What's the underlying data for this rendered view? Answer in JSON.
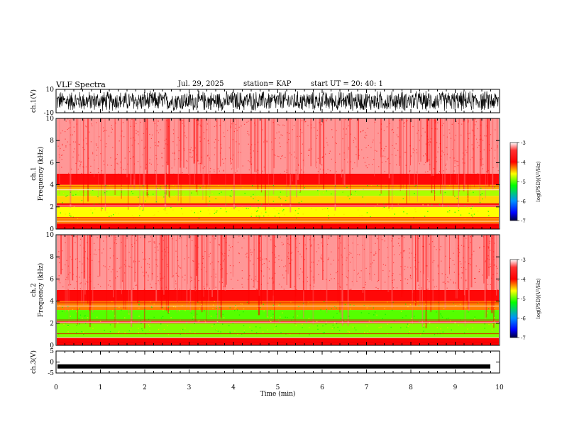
{
  "header": {
    "title": "VLF Spectra",
    "date": "Jul. 29, 2025",
    "station": "station= KAP",
    "start": "start UT = 20: 40: 1"
  },
  "chart_data": [
    {
      "type": "line",
      "title": "VLF Spectra",
      "ylabel": "ch.1(V)",
      "ylim": [
        -10,
        10
      ],
      "yticks": [
        "10",
        "-10"
      ],
      "xlim": [
        0,
        10
      ],
      "description_series": "ch.1 waveform, dense noise spanning about -8 to 8 V"
    },
    {
      "type": "heatmap",
      "ylabel_top": "ch.1",
      "ylabel": "Frequency (kHz)",
      "ylim": [
        0,
        10
      ],
      "yticks": [
        "0",
        "2",
        "4",
        "6",
        "8",
        "10"
      ],
      "xlim": [
        0,
        10
      ],
      "colorbar": {
        "label": "log(PSD)(V²/Hz)",
        "range": [
          -7,
          -3
        ],
        "ticks": [
          "-3",
          "-4",
          "-5",
          "-6",
          "-7"
        ]
      },
      "bands": [
        {
          "from": 0.0,
          "to": 0.5,
          "level": -4.0
        },
        {
          "from": 0.5,
          "to": 1.0,
          "level": -4.3
        },
        {
          "from": 1.0,
          "to": 2.0,
          "level": -4.6
        },
        {
          "from": 2.0,
          "to": 2.3,
          "level": -3.8
        },
        {
          "from": 2.3,
          "to": 3.0,
          "level": -4.5
        },
        {
          "from": 3.0,
          "to": 3.5,
          "level": -4.8
        },
        {
          "from": 3.5,
          "to": 4.0,
          "level": -4.4
        },
        {
          "from": 4.0,
          "to": 5.0,
          "level": -3.9
        },
        {
          "from": 5.0,
          "to": 10.0,
          "level": -3.2
        }
      ]
    },
    {
      "type": "heatmap",
      "ylabel_top": "ch.2",
      "ylabel": "Frequency (kHz)",
      "ylim": [
        0,
        10
      ],
      "yticks": [
        "0",
        "2",
        "4",
        "6",
        "8",
        "10"
      ],
      "xlim": [
        0,
        10
      ],
      "colorbar": {
        "label": "log(PSD)(V²/Hz)",
        "range": [
          -7,
          -3
        ],
        "ticks": [
          "-3",
          "-4",
          "-5",
          "-6",
          "-7"
        ]
      },
      "bands": [
        {
          "from": 0.0,
          "to": 0.7,
          "level": -4.0
        },
        {
          "from": 0.7,
          "to": 2.0,
          "level": -4.9
        },
        {
          "from": 2.0,
          "to": 2.2,
          "level": -3.9
        },
        {
          "from": 2.2,
          "to": 3.2,
          "level": -5.0
        },
        {
          "from": 3.2,
          "to": 4.0,
          "level": -4.3
        },
        {
          "from": 4.0,
          "to": 5.0,
          "level": -3.9
        },
        {
          "from": 5.0,
          "to": 10.0,
          "level": -3.2
        }
      ]
    },
    {
      "type": "line",
      "ylabel": "ch.3(V)",
      "ylim": [
        -5,
        5
      ],
      "yticks": [
        "5",
        "0",
        "-5"
      ],
      "xlim": [
        0,
        10
      ],
      "xlabel": "Time (min)",
      "xticks": [
        "0",
        "1",
        "2",
        "3",
        "4",
        "5",
        "6",
        "7",
        "8",
        "9",
        "10"
      ],
      "description_series": "ch.3 flat thick trace near -2 V"
    }
  ]
}
